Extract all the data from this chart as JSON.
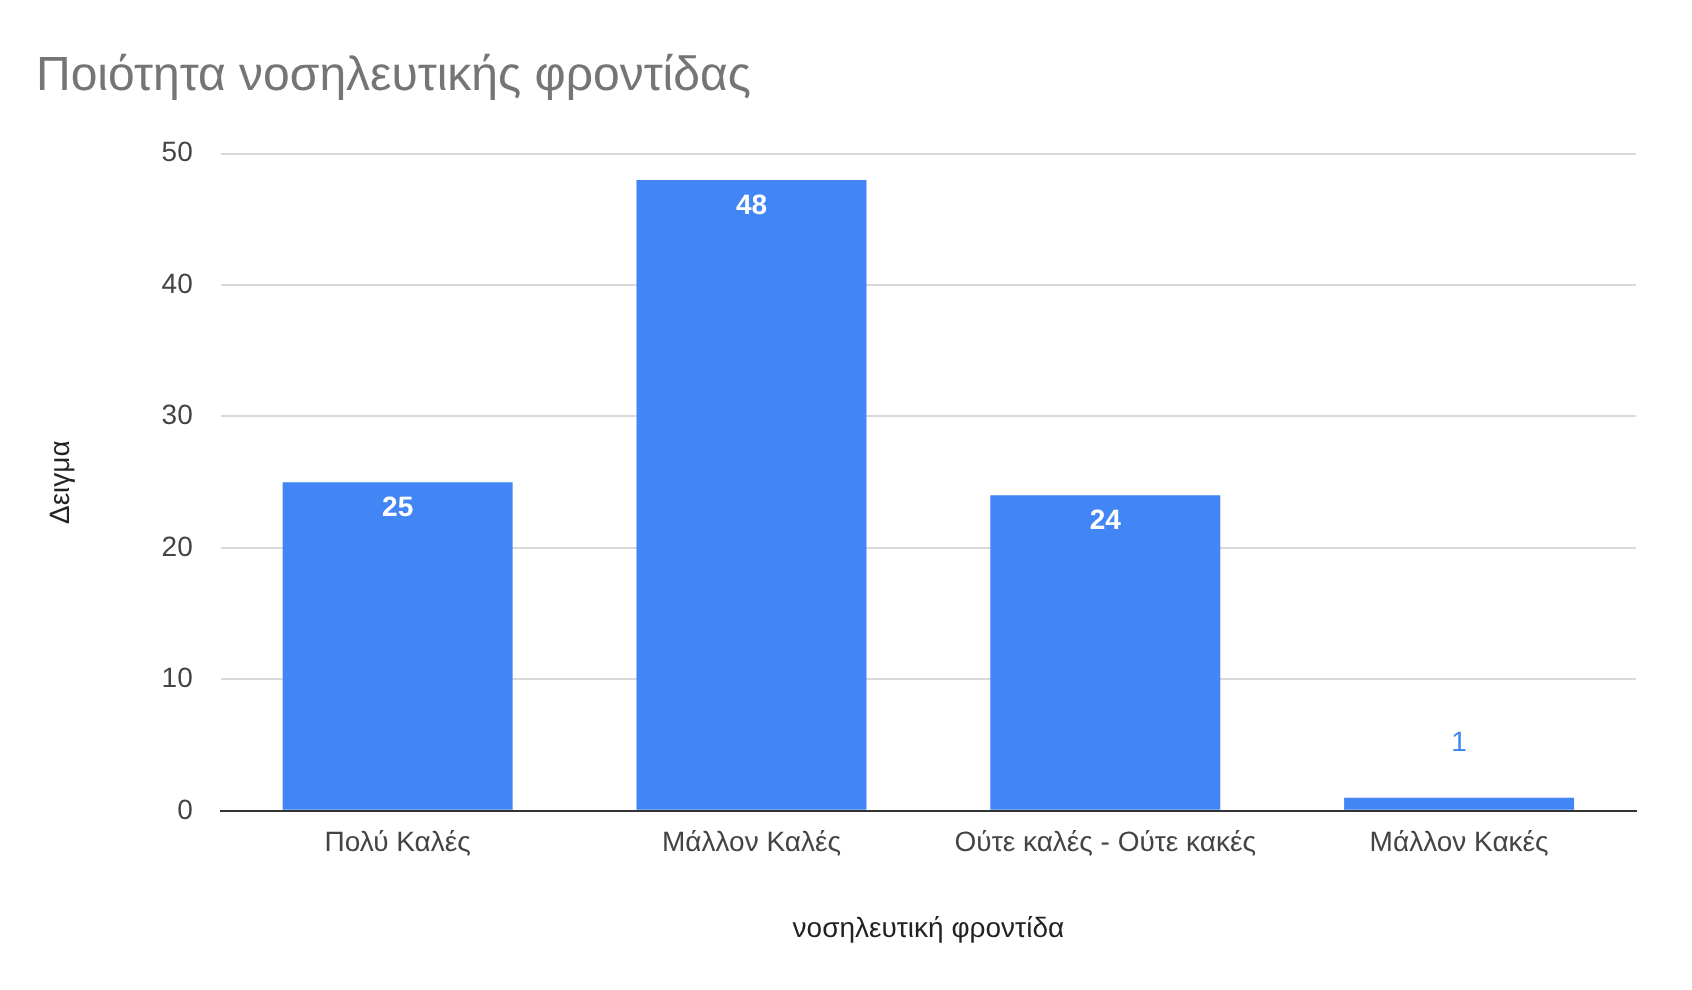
{
  "chart_data": {
    "type": "bar",
    "title": "Ποιότητα νοσηλευτικής φροντίδας",
    "xlabel": "νοσηλευτική φροντίδα",
    "ylabel": "Δειγμα",
    "categories": [
      "Πολύ Καλές",
      "Μάλλον Καλές",
      "Ούτε καλές - Ούτε κακές",
      "Μάλλον Κακές"
    ],
    "values": [
      25,
      48,
      24,
      1
    ],
    "color": "#4285f4",
    "ylim": [
      0,
      50
    ],
    "yticks": [
      0,
      10,
      20,
      30,
      40,
      50
    ],
    "grid": "y",
    "legend": false,
    "data_labels": true
  }
}
